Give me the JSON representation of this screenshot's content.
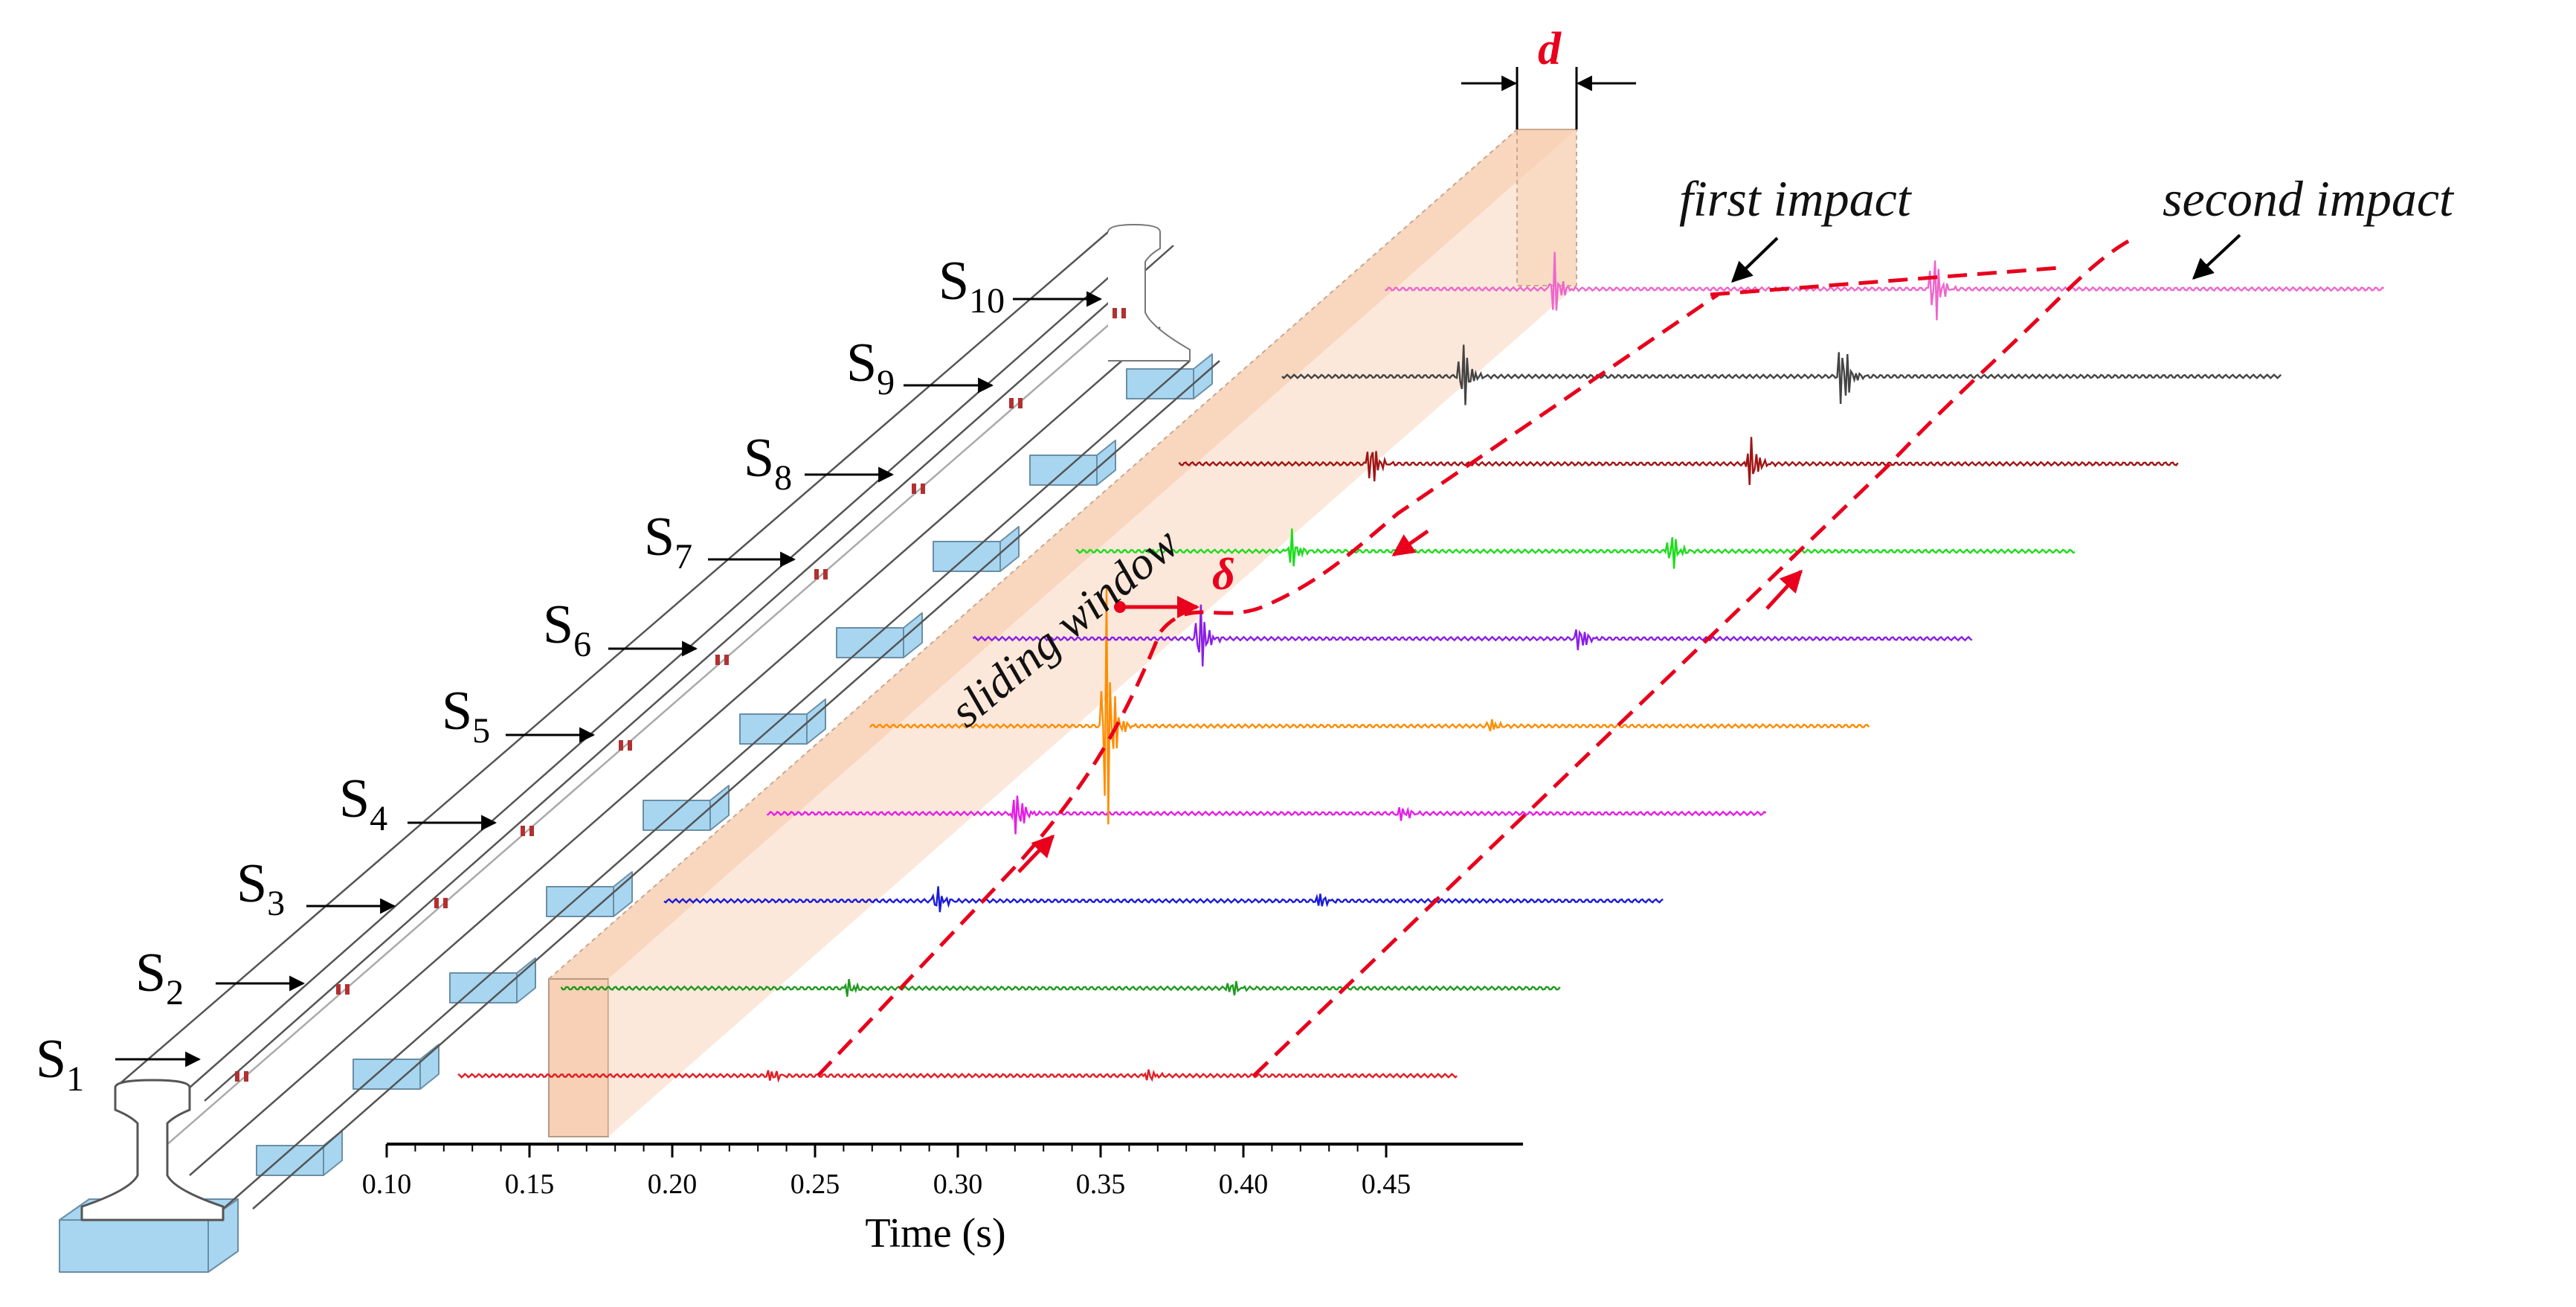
{
  "figure": {
    "type": "rail impact sensor diagram",
    "axis": {
      "title": "Time (s)",
      "ticks": [
        "0.10",
        "0.15",
        "0.20",
        "0.25",
        "0.30",
        "0.35",
        "0.40",
        "0.45"
      ],
      "tick_values": [
        0.1,
        0.15,
        0.2,
        0.25,
        0.3,
        0.35,
        0.4,
        0.45
      ]
    },
    "annotations": {
      "first_impact": "first impact",
      "second_impact": "second impact",
      "sliding_window": "sliding window",
      "delta": "δ",
      "d": "d"
    },
    "sensors": [
      {
        "letter": "S",
        "index": "1",
        "color": "#e51c23",
        "first_impact_s": 0.235,
        "second_impact_s": 0.367
      },
      {
        "letter": "S",
        "index": "2",
        "color": "#1f9a1f",
        "first_impact_s": 0.262,
        "second_impact_s": 0.396
      },
      {
        "letter": "S",
        "index": "3",
        "color": "#1a1adc",
        "first_impact_s": 0.293,
        "second_impact_s": 0.427
      },
      {
        "letter": "S",
        "index": "4",
        "color": "#e61ee6",
        "first_impact_s": 0.321,
        "second_impact_s": 0.456
      },
      {
        "letter": "S",
        "index": "5",
        "color": "#ff8c00",
        "first_impact_s": 0.352,
        "second_impact_s": 0.487
      },
      {
        "letter": "S",
        "index": "6",
        "color": "#8a1ee6",
        "first_impact_s": 0.385,
        "second_impact_s": 0.518
      },
      {
        "letter": "S",
        "index": "7",
        "color": "#1edc1e",
        "first_impact_s": 0.417,
        "second_impact_s": 0.55
      },
      {
        "letter": "S",
        "index": "8",
        "color": "#a01414",
        "first_impact_s": 0.445,
        "second_impact_s": 0.578
      },
      {
        "letter": "S",
        "index": "9",
        "color": "#444444",
        "first_impact_s": 0.477,
        "second_impact_s": 0.61
      },
      {
        "letter": "S",
        "index": "10",
        "color": "#ee66cc",
        "first_impact_s": 0.509,
        "second_impact_s": 0.642
      }
    ],
    "colors": {
      "impact_path": "#e8001c",
      "window_fill": "#f7c8a8"
    }
  }
}
